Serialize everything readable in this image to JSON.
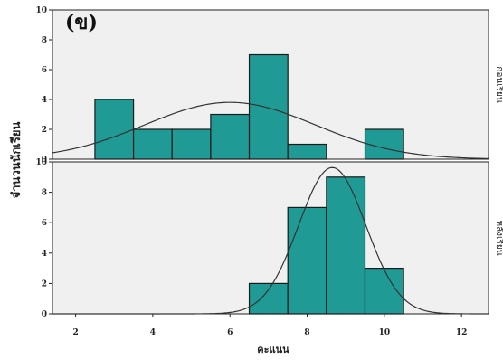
{
  "chart_data": {
    "type": "bar",
    "panel_label": "(ข)",
    "ylabel": "จำนวนนักเรียน",
    "xlabel": "คะแนน",
    "x_ticks": [
      2,
      4,
      6,
      8,
      10,
      12
    ],
    "xlim": [
      1.4,
      12.7
    ],
    "bar_color": "#1f9a94",
    "panels": [
      {
        "name": "ก่อนเรียน",
        "ylim": [
          0,
          10
        ],
        "y_ticks": [
          0,
          2,
          4,
          6,
          8,
          10
        ],
        "bins": [
          {
            "from": 2.5,
            "to": 3.5,
            "count": 4
          },
          {
            "from": 3.5,
            "to": 4.5,
            "count": 2
          },
          {
            "from": 4.5,
            "to": 5.5,
            "count": 2
          },
          {
            "from": 5.5,
            "to": 6.5,
            "count": 3
          },
          {
            "from": 6.5,
            "to": 7.5,
            "count": 7
          },
          {
            "from": 7.5,
            "to": 8.5,
            "count": 1
          },
          {
            "from": 9.5,
            "to": 10.5,
            "count": 2
          }
        ],
        "normal_curve": {
          "mean": 6.0,
          "sd": 2.2,
          "n": 21,
          "bin_width": 1
        }
      },
      {
        "name": "หลังเรียน",
        "ylim": [
          0,
          10
        ],
        "y_ticks": [
          0,
          2,
          4,
          6,
          8,
          10
        ],
        "bins": [
          {
            "from": 6.5,
            "to": 7.5,
            "count": 2
          },
          {
            "from": 7.5,
            "to": 8.5,
            "count": 7
          },
          {
            "from": 8.5,
            "to": 9.5,
            "count": 9
          },
          {
            "from": 9.5,
            "to": 10.5,
            "count": 3
          }
        ],
        "normal_curve": {
          "mean": 8.65,
          "sd": 0.87,
          "n": 21,
          "bin_width": 1
        }
      }
    ]
  }
}
